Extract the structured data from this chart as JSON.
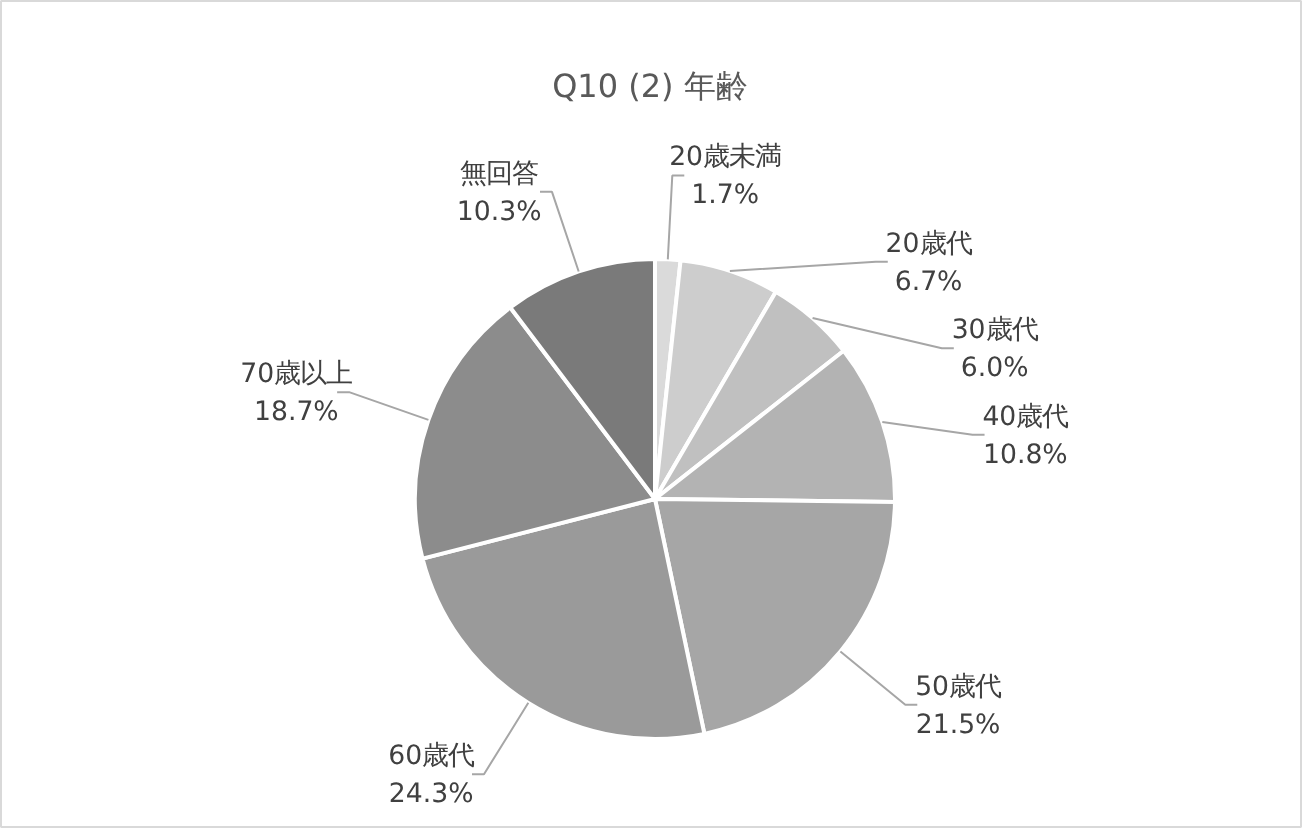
{
  "chart_data": {
    "type": "pie",
    "title": "Q10  (2) 年齢",
    "categories": [
      "20歳未満",
      "20歳代",
      "30歳代",
      "40歳代",
      "50歳代",
      "60歳代",
      "70歳以上",
      "無回答"
    ],
    "values": [
      1.7,
      6.7,
      6.0,
      10.8,
      21.5,
      24.3,
      18.7,
      10.3
    ],
    "value_labels": [
      "1.7%",
      "6.7%",
      "6.0%",
      "10.8%",
      "21.5%",
      "24.3%",
      "18.7%",
      "10.3%"
    ],
    "colors": [
      "#dadada",
      "#cdcdcd",
      "#c0c0c0",
      "#b3b3b3",
      "#a6a6a6",
      "#9a9a9a",
      "#8c8c8c",
      "#7a7a7a"
    ]
  }
}
